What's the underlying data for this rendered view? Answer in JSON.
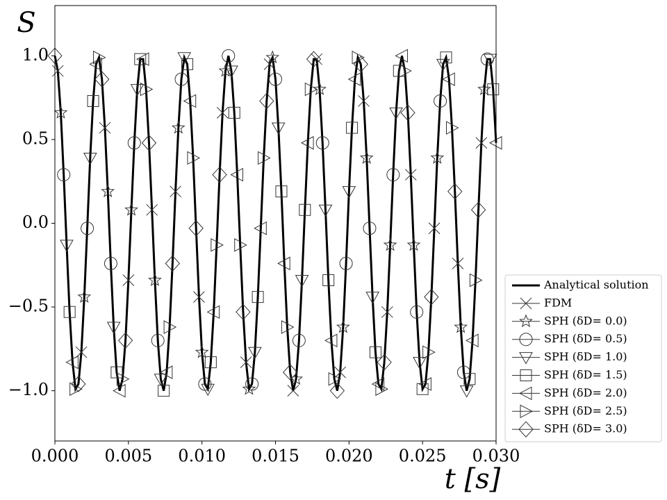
{
  "chart_data": {
    "type": "line",
    "ylabel": "S",
    "xlabel": "t [s]",
    "xlim": [
      0,
      0.03
    ],
    "ylim": [
      -1.3,
      1.3
    ],
    "xticks": [
      {
        "value": 0,
        "label": "0.000"
      },
      {
        "value": 0.005,
        "label": "0.005"
      },
      {
        "value": 0.01,
        "label": "0.010"
      },
      {
        "value": 0.015,
        "label": "0.015"
      },
      {
        "value": 0.02,
        "label": "0.020"
      },
      {
        "value": 0.025,
        "label": "0.025"
      },
      {
        "value": 0.03,
        "label": "0.030"
      }
    ],
    "yticks": [
      {
        "value": -1,
        "label": "−1.0"
      },
      {
        "value": -0.5,
        "label": "−0.5"
      },
      {
        "value": 0,
        "label": "0.0"
      },
      {
        "value": 0.5,
        "label": "0.5"
      },
      {
        "value": 1,
        "label": "1.0"
      }
    ],
    "legend": "lower right",
    "series": [
      {
        "name": "Analytical solution",
        "color": "#000000",
        "style": "line",
        "x": [
          0,
          0.0002,
          0.0004,
          0.0006,
          0.0008,
          0.001,
          0.0012,
          0.0014,
          0.0016,
          0.0018,
          0.002,
          0.0022,
          0.0024,
          0.0026,
          0.0028,
          0.003,
          0.0032,
          0.0034,
          0.0036,
          0.0038,
          0.004,
          0.0042,
          0.0044,
          0.0046,
          0.0048,
          0.005,
          0.0052,
          0.0054,
          0.0056,
          0.0058,
          0.006,
          0.0062,
          0.0064,
          0.0066,
          0.0068,
          0.007,
          0.0072,
          0.0074,
          0.0076,
          0.0078,
          0.008,
          0.0082,
          0.0084,
          0.0086,
          0.0088,
          0.009,
          0.0092,
          0.0094,
          0.0096,
          0.0098,
          0.01,
          0.0102,
          0.0104,
          0.0106,
          0.0108,
          0.011,
          0.0112,
          0.0114,
          0.0116,
          0.0118,
          0.012,
          0.0122,
          0.0124,
          0.0126,
          0.0128,
          0.013,
          0.0132,
          0.0134,
          0.0136,
          0.0138,
          0.014,
          0.0142,
          0.0144,
          0.0146,
          0.0148,
          0.015,
          0.0152,
          0.0154,
          0.0156,
          0.0158,
          0.016,
          0.0162,
          0.0164,
          0.0166,
          0.0168,
          0.017,
          0.0172,
          0.0174,
          0.0176,
          0.0178,
          0.018,
          0.0182,
          0.0184,
          0.0186,
          0.0188,
          0.019,
          0.0192,
          0.0194,
          0.0196,
          0.0198,
          0.02,
          0.0202,
          0.0204,
          0.0206,
          0.0208,
          0.021,
          0.0212,
          0.0214,
          0.0216,
          0.0218,
          0.022,
          0.0222,
          0.0224,
          0.0226,
          0.0228,
          0.023,
          0.0232,
          0.0234,
          0.0236,
          0.0238,
          0.024,
          0.0242,
          0.0244,
          0.0246,
          0.0248,
          0.025,
          0.0252,
          0.0254,
          0.0256,
          0.0258,
          0.026,
          0.0262,
          0.0264,
          0.0266,
          0.0268,
          0.027,
          0.0272,
          0.0274,
          0.0276,
          0.0278,
          0.028,
          0.0282,
          0.0284,
          0.0286,
          0.0288,
          0.029,
          0.0292,
          0.0294,
          0.0296,
          0.0298,
          0.03
        ],
        "values": [
          1.0,
          0.91,
          0.66,
          0.29,
          -0.13,
          -0.53,
          -0.83,
          -0.99,
          -0.96,
          -0.77,
          -0.44,
          -0.03,
          0.39,
          0.73,
          0.95,
          0.99,
          0.86,
          0.57,
          0.19,
          -0.24,
          -0.62,
          -0.89,
          -1.0,
          -0.93,
          -0.7,
          -0.34,
          0.08,
          0.48,
          0.8,
          0.98,
          0.98,
          0.8,
          0.48,
          0.08,
          -0.34,
          -0.7,
          -0.93,
          -1.0,
          -0.89,
          -0.62,
          -0.24,
          0.19,
          0.57,
          0.86,
          0.99,
          0.95,
          0.73,
          0.39,
          -0.03,
          -0.44,
          -0.77,
          -0.96,
          -0.99,
          -0.83,
          -0.53,
          -0.13,
          0.29,
          0.66,
          0.91,
          1.0,
          0.91,
          0.66,
          0.29,
          -0.13,
          -0.53,
          -0.83,
          -0.99,
          -0.96,
          -0.77,
          -0.44,
          -0.03,
          0.39,
          0.73,
          0.95,
          0.99,
          0.86,
          0.57,
          0.19,
          -0.24,
          -0.62,
          -0.89,
          -1.0,
          -0.93,
          -0.7,
          -0.34,
          0.08,
          0.48,
          0.8,
          0.98,
          0.98,
          0.8,
          0.48,
          0.08,
          -0.34,
          -0.7,
          -0.93,
          -1.0,
          -0.89,
          -0.62,
          -0.24,
          0.19,
          0.57,
          0.86,
          0.99,
          0.95,
          0.73,
          0.39,
          -0.03,
          -0.44,
          -0.77,
          -0.96,
          -0.99,
          -0.83,
          -0.53,
          -0.13,
          0.29,
          0.66,
          0.91,
          1.0,
          0.91,
          0.66,
          0.29,
          -0.13,
          -0.53,
          -0.83,
          -0.99,
          -0.96,
          -0.77,
          -0.44,
          -0.03,
          0.39,
          0.73,
          0.95,
          0.99,
          0.86,
          0.57,
          0.19,
          -0.24,
          -0.62,
          -0.89,
          -1.0,
          -0.93,
          -0.7,
          -0.34,
          0.08,
          0.48,
          0.8,
          0.98,
          0.98,
          0.8,
          0.48
        ]
      },
      {
        "name": "FDM",
        "color": "#333333",
        "style": "marker",
        "marker": "x",
        "x": [
          0.0002,
          0.0018,
          0.0034,
          0.005,
          0.0066,
          0.0082,
          0.0098,
          0.0114,
          0.013,
          0.0146,
          0.0162,
          0.0178,
          0.0194,
          0.021,
          0.0226,
          0.0242,
          0.0258,
          0.0274,
          0.029
        ],
        "values": [
          0.91,
          -0.77,
          0.57,
          -0.34,
          0.08,
          0.19,
          -0.44,
          0.66,
          -0.83,
          0.95,
          -1.0,
          0.98,
          -0.89,
          0.73,
          -0.53,
          0.29,
          -0.03,
          -0.24,
          0.48
        ]
      },
      {
        "name": "SPH (δD= 0.0)",
        "color": "#333333",
        "style": "marker",
        "marker": "star",
        "x": [
          0.0004,
          0.002,
          0.0036,
          0.0052,
          0.0068,
          0.0084,
          0.01,
          0.0116,
          0.0132,
          0.0148,
          0.0164,
          0.018,
          0.0196,
          0.0212,
          0.0228,
          0.0244,
          0.026,
          0.0276,
          0.0292
        ],
        "values": [
          0.66,
          -0.44,
          0.19,
          0.08,
          -0.34,
          0.57,
          -0.77,
          0.91,
          -0.99,
          0.99,
          -0.93,
          0.8,
          -0.62,
          0.39,
          -0.13,
          -0.13,
          0.39,
          -0.62,
          0.8
        ]
      },
      {
        "name": "SPH (δD= 0.5)",
        "color": "#333333",
        "style": "marker",
        "marker": "circle",
        "x": [
          0.0006,
          0.0022,
          0.0038,
          0.0054,
          0.007,
          0.0086,
          0.0102,
          0.0118,
          0.0134,
          0.015,
          0.0166,
          0.0182,
          0.0198,
          0.0214,
          0.023,
          0.0246,
          0.0262,
          0.0278,
          0.0294
        ],
        "values": [
          0.29,
          -0.03,
          -0.24,
          0.48,
          -0.7,
          0.86,
          -0.96,
          1.0,
          -0.96,
          0.86,
          -0.7,
          0.48,
          -0.24,
          -0.03,
          0.29,
          -0.53,
          0.73,
          -0.89,
          0.98
        ]
      },
      {
        "name": "SPH (δD= 1.0)",
        "color": "#333333",
        "style": "marker",
        "marker": "tri-down",
        "x": [
          0.0008,
          0.0024,
          0.004,
          0.0056,
          0.0072,
          0.0088,
          0.0104,
          0.012,
          0.0136,
          0.0152,
          0.0168,
          0.0184,
          0.02,
          0.0216,
          0.0232,
          0.0248,
          0.0264,
          0.028,
          0.0296
        ],
        "values": [
          -0.13,
          0.39,
          -0.62,
          0.8,
          -0.93,
          0.99,
          -0.99,
          0.91,
          -0.77,
          0.57,
          -0.34,
          0.08,
          0.19,
          -0.44,
          0.66,
          -0.83,
          0.95,
          -1.0,
          0.98
        ]
      },
      {
        "name": "SPH (δD= 1.5)",
        "color": "#333333",
        "style": "marker",
        "marker": "square",
        "x": [
          0.001,
          0.0026,
          0.0042,
          0.0058,
          0.0074,
          0.009,
          0.0106,
          0.0122,
          0.0138,
          0.0154,
          0.017,
          0.0186,
          0.0202,
          0.0218,
          0.0234,
          0.025,
          0.0266,
          0.0282,
          0.0298
        ],
        "values": [
          -0.53,
          0.73,
          -0.89,
          0.98,
          -1.0,
          0.95,
          -0.83,
          0.66,
          -0.44,
          0.19,
          0.08,
          -0.34,
          0.57,
          -0.77,
          0.91,
          -0.99,
          0.99,
          -0.93,
          0.8
        ]
      },
      {
        "name": "SPH (δD= 2.0)",
        "color": "#333333",
        "style": "marker",
        "marker": "tri-left",
        "x": [
          0.0012,
          0.0028,
          0.0044,
          0.006,
          0.0076,
          0.0092,
          0.0108,
          0.0124,
          0.014,
          0.0156,
          0.0172,
          0.0188,
          0.0204,
          0.022,
          0.0236,
          0.0252,
          0.0268,
          0.0284,
          0.03
        ],
        "values": [
          -0.83,
          0.95,
          -1.0,
          0.98,
          -0.89,
          0.73,
          -0.53,
          0.29,
          -0.03,
          -0.24,
          0.48,
          -0.7,
          0.86,
          -0.96,
          1.0,
          -0.96,
          0.86,
          -0.7,
          0.48
        ]
      },
      {
        "name": "SPH (δD= 2.5)",
        "color": "#333333",
        "style": "marker",
        "marker": "tri-right",
        "x": [
          0.0014,
          0.003,
          0.0046,
          0.0062,
          0.0078,
          0.0094,
          0.011,
          0.0126,
          0.0142,
          0.0158,
          0.0174,
          0.019,
          0.0206,
          0.0222,
          0.0238,
          0.0254,
          0.027,
          0.0286
        ],
        "values": [
          -0.99,
          0.99,
          -0.93,
          0.8,
          -0.62,
          0.39,
          -0.13,
          -0.13,
          0.39,
          -0.62,
          0.8,
          -0.93,
          0.99,
          -0.99,
          0.91,
          -0.77,
          0.57,
          -0.34
        ]
      },
      {
        "name": "SPH (δD= 3.0)",
        "color": "#333333",
        "style": "marker",
        "marker": "diamond",
        "x": [
          0,
          0.0016,
          0.0032,
          0.0048,
          0.0064,
          0.008,
          0.0096,
          0.0112,
          0.0128,
          0.0144,
          0.016,
          0.0176,
          0.0192,
          0.0208,
          0.0224,
          0.024,
          0.0256,
          0.0272,
          0.0288
        ],
        "values": [
          1.0,
          -0.96,
          0.86,
          -0.7,
          0.48,
          -0.24,
          -0.03,
          0.29,
          -0.53,
          0.73,
          -0.89,
          0.98,
          -1.0,
          0.95,
          -0.83,
          0.66,
          -0.44,
          0.19,
          0.08
        ]
      }
    ]
  }
}
